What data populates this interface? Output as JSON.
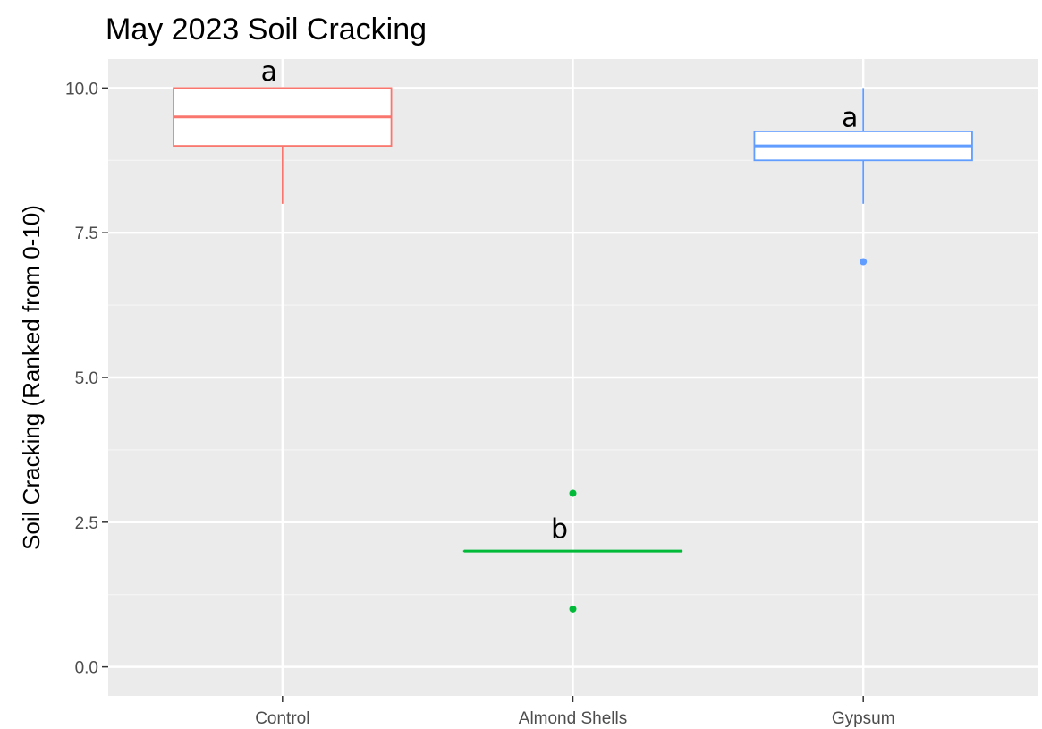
{
  "chart_data": {
    "type": "box",
    "title": "May 2023 Soil Cracking",
    "xlabel": "",
    "ylabel": "Soil Cracking (Ranked from 0-10)",
    "ylim": [
      -0.5,
      10.5
    ],
    "yticks": [
      0.0,
      2.5,
      5.0,
      7.5,
      10.0
    ],
    "ytick_labels": [
      "0.0",
      "2.5",
      "5.0",
      "7.5",
      "10.0"
    ],
    "grid": true,
    "legend": "none",
    "categories": [
      "Control",
      "Almond Shells",
      "Gypsum"
    ],
    "series": [
      {
        "category": "Control",
        "color": "#f8766d",
        "q1": 9.0,
        "median": 9.5,
        "q3": 10.0,
        "whisker_low": 8.0,
        "whisker_high": 10.0,
        "outliers": [],
        "letter": "a",
        "letter_y": 10.3
      },
      {
        "category": "Almond Shells",
        "color": "#00ba38",
        "q1": 2.0,
        "median": 2.0,
        "q3": 2.0,
        "whisker_low": 2.0,
        "whisker_high": 2.0,
        "outliers": [
          3.0,
          1.0
        ],
        "letter": "b",
        "letter_y": 2.4
      },
      {
        "category": "Gypsum",
        "color": "#619cff",
        "q1": 8.75,
        "median": 9.0,
        "q3": 9.25,
        "whisker_low": 8.0,
        "whisker_high": 10.0,
        "outliers": [
          7.0
        ],
        "letter": "a",
        "letter_y": 9.5
      }
    ]
  }
}
